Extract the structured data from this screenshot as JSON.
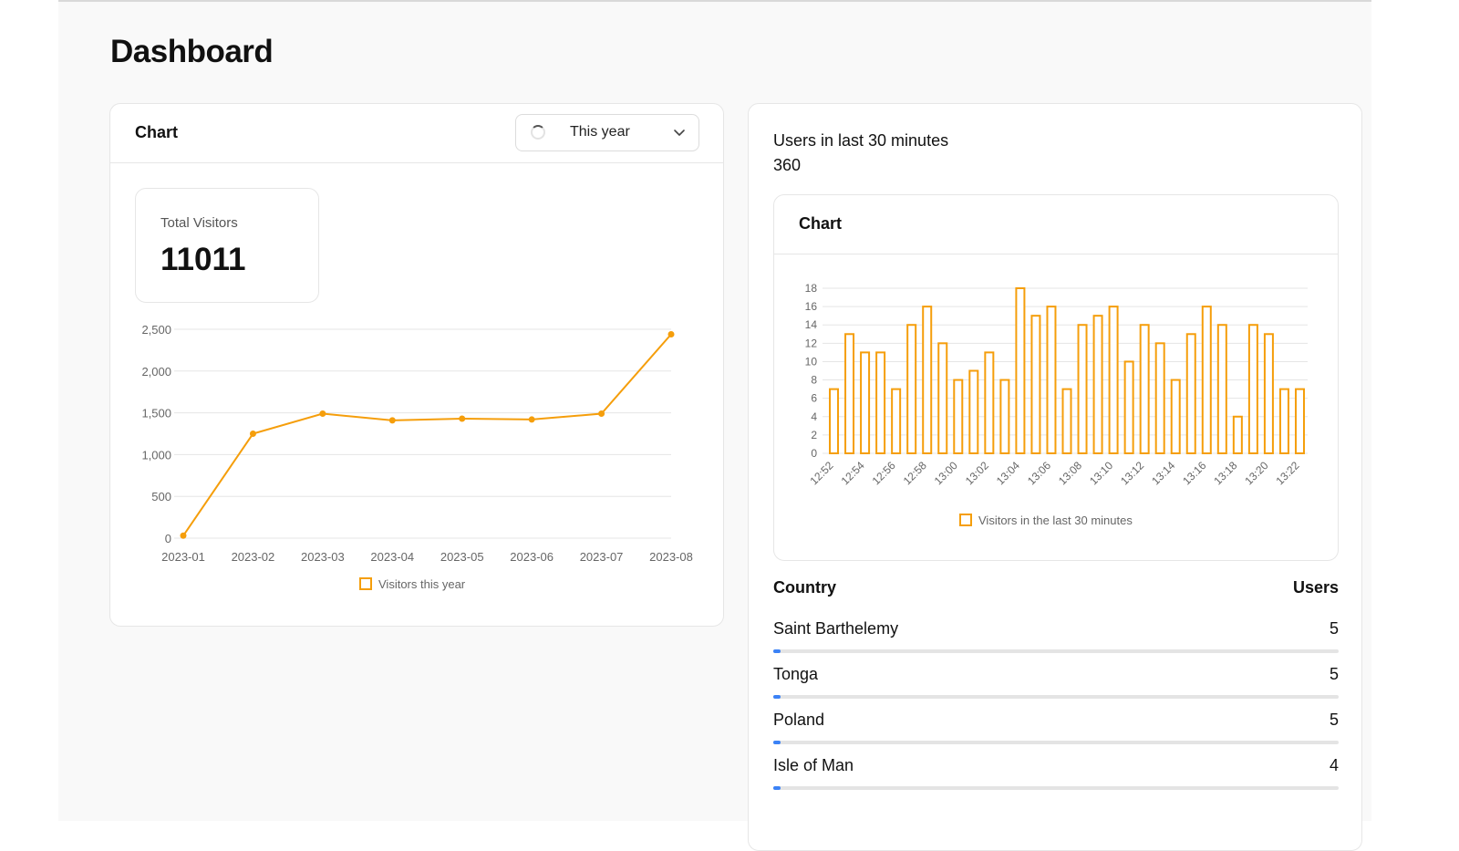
{
  "page": {
    "title": "Dashboard"
  },
  "colors": {
    "accent": "#f59e0b",
    "progress": "#3b82f6"
  },
  "left_card": {
    "title": "Chart",
    "range_select": {
      "selected": "This year",
      "icon": "spinner-icon"
    },
    "stat": {
      "label": "Total Visitors",
      "value": "11011"
    }
  },
  "right_card": {
    "users_label": "Users in last 30 minutes",
    "users_value": "360",
    "chart_title": "Chart",
    "table": {
      "header_country": "Country",
      "header_users": "Users",
      "rows": [
        {
          "country": "Saint Barthelemy",
          "users": "5"
        },
        {
          "country": "Tonga",
          "users": "5"
        },
        {
          "country": "Poland",
          "users": "5"
        },
        {
          "country": "Isle of Man",
          "users": "4"
        }
      ]
    }
  },
  "chart_data": [
    {
      "type": "line",
      "x": [
        "2023-01",
        "2023-02",
        "2023-03",
        "2023-04",
        "2023-05",
        "2023-06",
        "2023-07",
        "2023-08"
      ],
      "series": [
        {
          "name": "Visitors this year",
          "values": [
            30,
            1250,
            1490,
            1410,
            1430,
            1420,
            1490,
            2440
          ]
        }
      ],
      "ylim": [
        0,
        2500
      ],
      "yticks": [
        "0",
        "500",
        "1,000",
        "1,500",
        "2,000",
        "2,500"
      ],
      "grid": true,
      "legend": "bottom"
    },
    {
      "type": "bar",
      "categories": [
        "12:52",
        "12:53",
        "12:54",
        "12:55",
        "12:56",
        "12:57",
        "12:58",
        "12:59",
        "13:00",
        "13:01",
        "13:02",
        "13:03",
        "13:04",
        "13:05",
        "13:06",
        "13:07",
        "13:08",
        "13:09",
        "13:10",
        "13:11",
        "13:12",
        "13:13",
        "13:14",
        "13:15",
        "13:16",
        "13:17",
        "13:18",
        "13:19",
        "13:20",
        "13:21",
        "13:22"
      ],
      "tick_labels": [
        "12:52",
        "12:54",
        "12:56",
        "12:58",
        "13:00",
        "13:02",
        "13:04",
        "13:06",
        "13:08",
        "13:10",
        "13:12",
        "13:14",
        "13:16",
        "13:18",
        "13:20",
        "13:22"
      ],
      "series": [
        {
          "name": "Visitors in the last 30 minutes",
          "values": [
            7,
            13,
            11,
            11,
            7,
            14,
            16,
            12,
            8,
            9,
            11,
            8,
            18,
            15,
            16,
            7,
            14,
            15,
            16,
            10,
            14,
            12,
            8,
            13,
            16,
            14,
            4,
            14,
            13,
            7,
            7
          ]
        }
      ],
      "ylim": [
        0,
        18
      ],
      "yticks": [
        "0",
        "2",
        "4",
        "6",
        "8",
        "10",
        "12",
        "14",
        "16",
        "18"
      ],
      "grid": true,
      "legend": "bottom"
    }
  ]
}
